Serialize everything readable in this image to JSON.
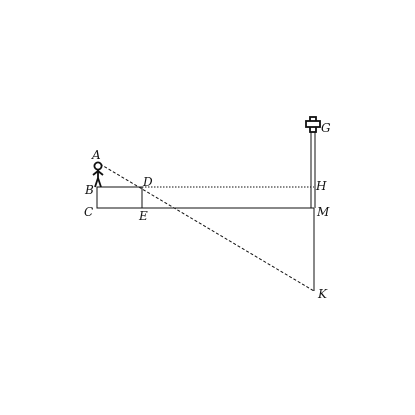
{
  "diagram": {
    "colors": {
      "line": "#111111",
      "background": "#ffffff"
    },
    "labels": {
      "A": "A",
      "B": "B",
      "C": "C",
      "D": "D",
      "E": "E",
      "G": "G",
      "H": "H",
      "M": "M",
      "K": "K"
    },
    "figures": {
      "observer": "person-figure",
      "tower_top": "cross-symbol"
    }
  }
}
